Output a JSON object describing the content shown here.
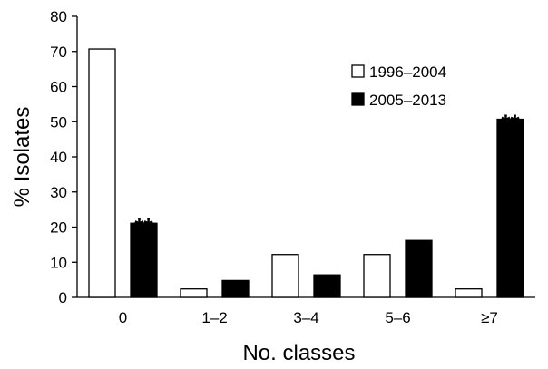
{
  "chart_data": {
    "type": "bar",
    "xlabel": "No. classes",
    "ylabel": "% Isolates",
    "ylim": [
      0,
      80
    ],
    "yticks": [
      0,
      10,
      20,
      30,
      40,
      50,
      60,
      70,
      80
    ],
    "categories": [
      "0",
      "1–2",
      "3–4",
      "5–6",
      "≥7"
    ],
    "series": [
      {
        "name": "1996–2004",
        "color": "#ffffff",
        "values": [
          70.7,
          2.4,
          12.2,
          12.2,
          2.4
        ]
      },
      {
        "name": "2005–2013",
        "color": "#000000",
        "values": [
          21.1,
          4.8,
          6.4,
          16.2,
          50.7
        ]
      }
    ],
    "annotations": [
      {
        "text": "**",
        "category": "0",
        "series": "2005–2013"
      },
      {
        "text": "**",
        "category": "≥7",
        "series": "2005–2013"
      }
    ],
    "legend_position": "top-right",
    "grid": false
  }
}
